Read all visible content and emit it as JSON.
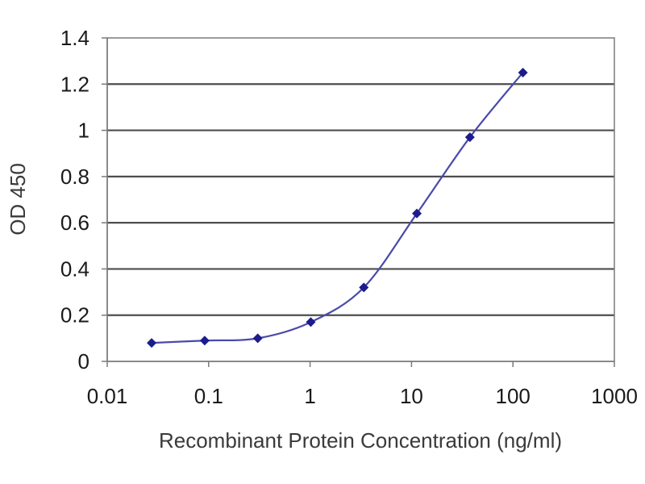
{
  "chart_data": {
    "type": "scatter",
    "title": "",
    "xlabel": "Recombinant Protein Concentration (ng/ml)",
    "ylabel": "OD 450",
    "x_scale": "log",
    "xlim": [
      0.01,
      1000
    ],
    "ylim": [
      0,
      1.4
    ],
    "x_ticks": [
      {
        "value": 0.01,
        "label": "0.01"
      },
      {
        "value": 0.1,
        "label": "0.1"
      },
      {
        "value": 1,
        "label": "1"
      },
      {
        "value": 10,
        "label": "10"
      },
      {
        "value": 100,
        "label": "100"
      },
      {
        "value": 1000,
        "label": "1000"
      }
    ],
    "y_ticks": [
      {
        "value": 0,
        "label": "0"
      },
      {
        "value": 0.2,
        "label": "0.2"
      },
      {
        "value": 0.4,
        "label": "0.4"
      },
      {
        "value": 0.6,
        "label": "0.6"
      },
      {
        "value": 0.8,
        "label": "0.8"
      },
      {
        "value": 1.0,
        "label": "1"
      },
      {
        "value": 1.2,
        "label": "1.2"
      },
      {
        "value": 1.4,
        "label": "1.4"
      }
    ],
    "grid": "horizontal",
    "legend": "none",
    "series": [
      {
        "x": [
          0.0274,
          0.0914,
          0.3048,
          1.016,
          3.3867,
          11.289,
          37.63,
          125.44
        ],
        "y": [
          0.08,
          0.09,
          0.1,
          0.17,
          0.32,
          0.64,
          0.97,
          1.25
        ],
        "color": "#1c1c8c",
        "curve_color": "#4a4aaa",
        "marker": "diamond",
        "fit": "smooth"
      }
    ],
    "plot_background": "#ffffff",
    "gridline_color": "#4d4d4d",
    "axis_color": "#7a7a7a"
  }
}
